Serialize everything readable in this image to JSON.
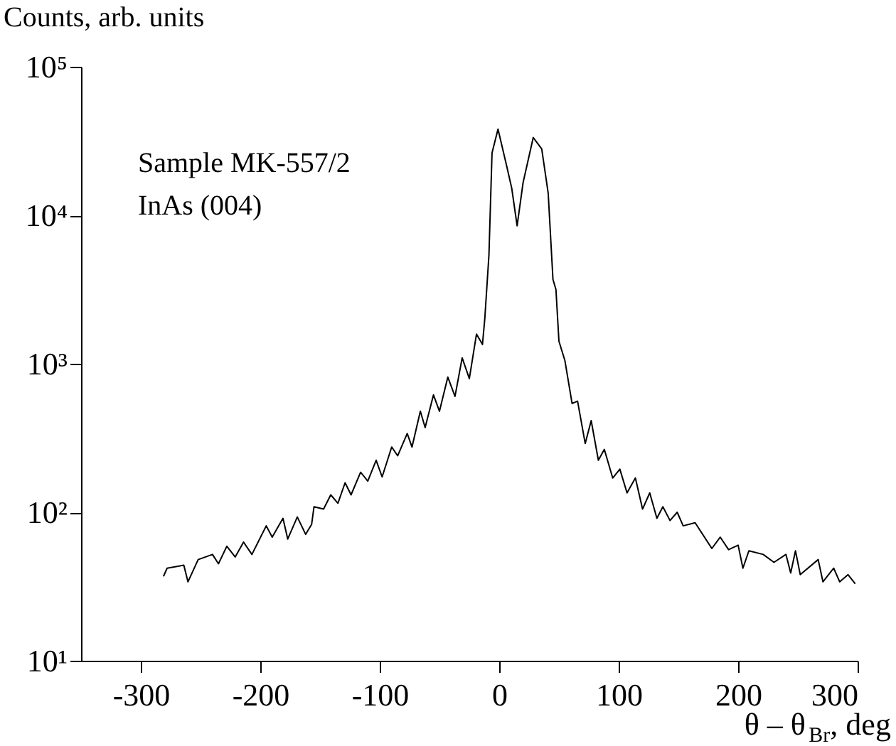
{
  "chart_data": {
    "type": "line",
    "ylabel": "Counts, arb. units",
    "xlabel": "θ – θ$_{Br}$, deg",
    "annotations": [
      "Sample MK-557/2",
      "InAs (004)"
    ],
    "log": true,
    "grid": false,
    "marker": "none",
    "line_style": "solid",
    "xlim": [
      -350,
      300
    ],
    "xticks": [
      -300,
      -200,
      -100,
      0,
      100,
      200,
      300
    ],
    "ylim": [
      10,
      100000
    ],
    "yticks": [
      {
        "value": 10,
        "label": "10¹"
      },
      {
        "value": 100,
        "label": "10²"
      },
      {
        "value": 1000,
        "label": "10³"
      },
      {
        "value": 10000,
        "label": "10⁴"
      },
      {
        "value": 100000,
        "label": "10⁵"
      }
    ],
    "series": [
      {
        "color": "#000000",
        "x": [
          -281,
          -278,
          -264,
          -260.5,
          -252,
          -240,
          -235,
          -228,
          -221,
          -214,
          -207,
          -195,
          -190,
          -181,
          -177,
          -169,
          -162,
          -157,
          -155,
          -147,
          -141,
          -135,
          -129,
          -124,
          -116,
          -110,
          -103,
          -98,
          -90,
          -85,
          -77,
          -73,
          -66,
          -62,
          -55,
          -50,
          -43,
          -37,
          -31,
          -25,
          -19,
          -14,
          -12,
          -8.6,
          -6,
          -1,
          6,
          10.5,
          15,
          20,
          28.5,
          35.6,
          41,
          45,
          47.5,
          50,
          55,
          61,
          65.6,
          72,
          77,
          83,
          88,
          95,
          101,
          107,
          114,
          120,
          126,
          132,
          137,
          143,
          149,
          154,
          164,
          178,
          185,
          192,
          200,
          204,
          209,
          221,
          230,
          240,
          244,
          248,
          252,
          267,
          271,
          280,
          285,
          292,
          298
        ],
        "values": [
          37,
          42,
          44,
          34,
          48,
          52,
          45,
          59,
          50,
          63,
          52,
          81,
          68,
          91,
          66,
          93,
          71,
          83,
          109,
          105,
          131,
          115,
          158,
          131,
          186,
          162,
          224,
          173,
          275,
          240,
          339,
          275,
          479,
          372,
          617,
          479,
          813,
          603,
          1096,
          794,
          1585,
          1349,
          2040,
          5370,
          26300,
          38000,
          21900,
          15200,
          8500,
          16600,
          33400,
          28000,
          14100,
          3700,
          3160,
          1420,
          1050,
          540,
          560,
          290,
          414,
          224,
          265,
          170,
          195,
          135,
          170,
          105,
          135,
          91,
          109,
          88,
          100,
          81,
          85,
          57,
          68,
          56,
          60,
          42,
          55,
          52,
          46,
          52,
          39,
          55,
          38,
          48,
          34,
          42,
          34,
          38,
          33
        ]
      }
    ]
  }
}
